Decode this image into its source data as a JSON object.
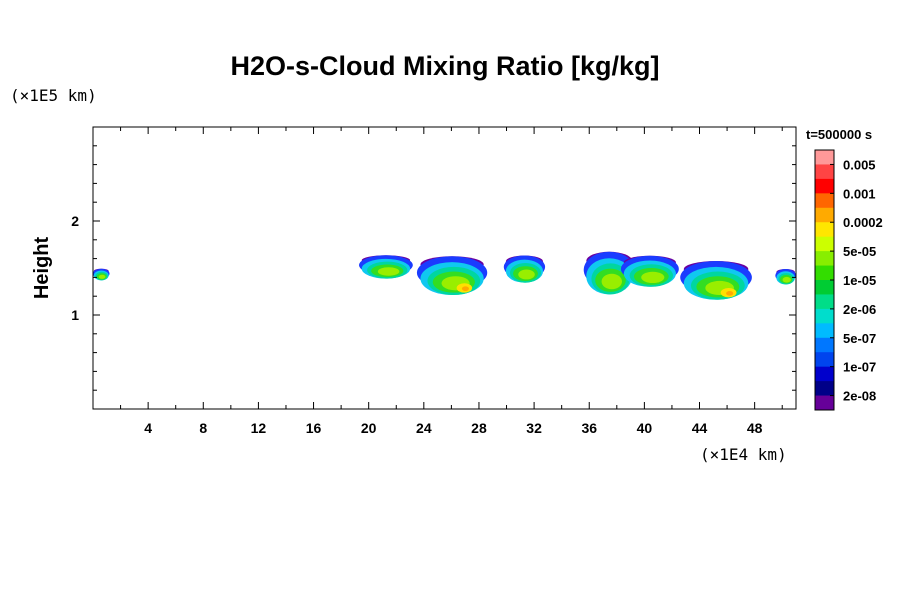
{
  "chart_data": {
    "type": "heatmap",
    "title": "H2O-s-Cloud Mixing Ratio [kg/kg]",
    "xlabel": "",
    "ylabel": "Height",
    "x_unit": "(×1E4 km)",
    "y_unit": "(×1E5 km)",
    "time_label": "t=500000 s",
    "xlim": [
      0,
      51
    ],
    "ylim": [
      0,
      3
    ],
    "x_ticks": [
      4,
      8,
      12,
      16,
      20,
      24,
      28,
      32,
      36,
      40,
      44,
      48
    ],
    "y_ticks": [
      1,
      2
    ],
    "colorbar": {
      "labels": [
        "0.005",
        "0.001",
        "0.0002",
        "5e-05",
        "1e-05",
        "2e-06",
        "5e-07",
        "1e-07",
        "2e-08"
      ],
      "colors": [
        "#ff9999",
        "#ff4444",
        "#ff0000",
        "#ff6600",
        "#ffaa00",
        "#ffe600",
        "#ccff00",
        "#88ee00",
        "#33dd00",
        "#00cc33",
        "#00dd88",
        "#00ddcc",
        "#00bbff",
        "#0077ff",
        "#0044ee",
        "#0000cc",
        "#000088",
        "#660099"
      ]
    },
    "cloud_regions": [
      {
        "x_range": [
          0,
          1.2
        ],
        "height_range": [
          1.35,
          1.5
        ],
        "max_level": "1e-05"
      },
      {
        "x_range": [
          19.3,
          23.2
        ],
        "height_range": [
          1.35,
          1.65
        ],
        "max_level": "1e-05"
      },
      {
        "x_range": [
          23.5,
          28.6
        ],
        "height_range": [
          1.15,
          1.65
        ],
        "max_level": "0.0002"
      },
      {
        "x_range": [
          29.8,
          32.8
        ],
        "height_range": [
          1.3,
          1.65
        ],
        "max_level": "1e-05"
      },
      {
        "x_range": [
          35.6,
          39.3
        ],
        "height_range": [
          1.15,
          1.7
        ],
        "max_level": "1e-05"
      },
      {
        "x_range": [
          38.3,
          42.5
        ],
        "height_range": [
          1.25,
          1.65
        ],
        "max_level": "1e-05"
      },
      {
        "x_range": [
          42.6,
          47.8
        ],
        "height_range": [
          1.1,
          1.6
        ],
        "max_level": "0.0002"
      },
      {
        "x_range": [
          49.5,
          51
        ],
        "height_range": [
          1.3,
          1.5
        ],
        "max_level": "1e-05"
      }
    ]
  }
}
